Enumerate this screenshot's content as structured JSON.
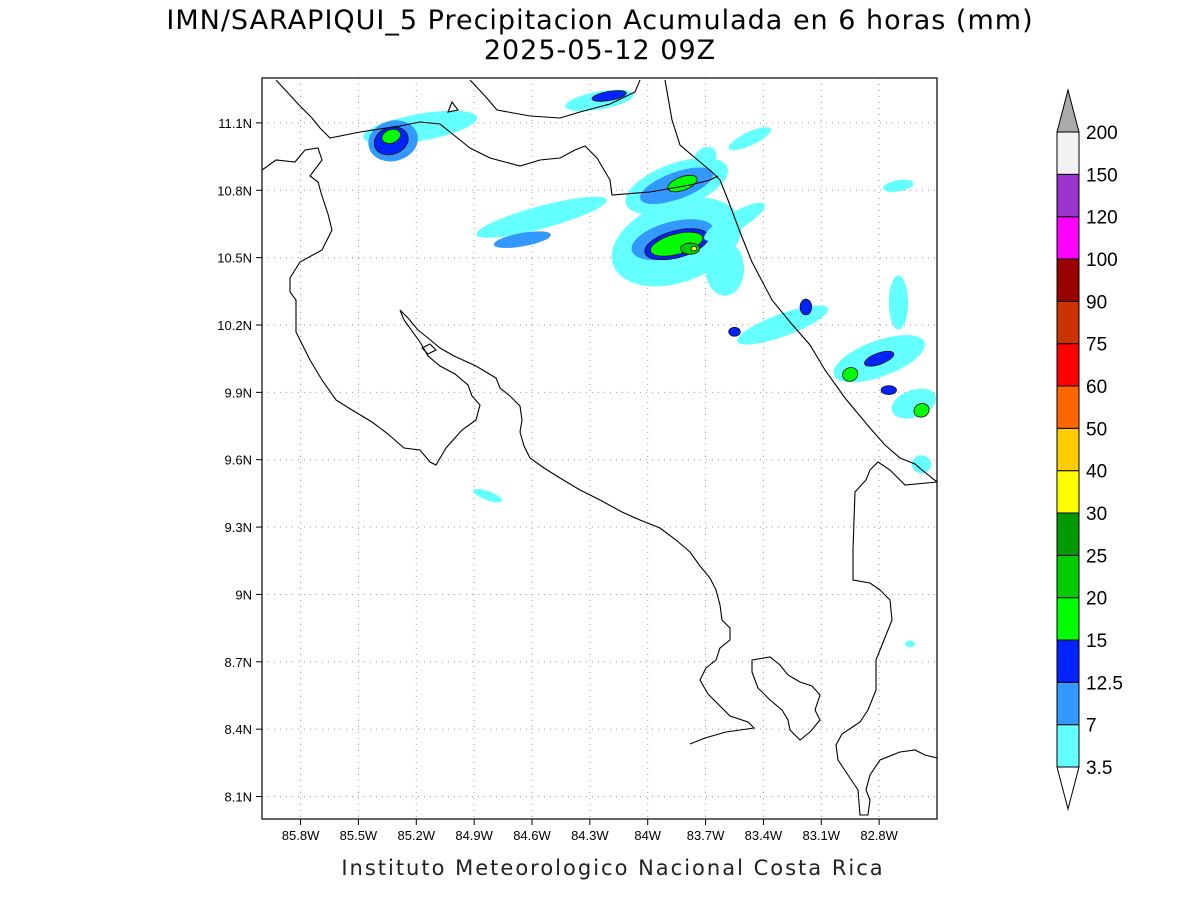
{
  "title": {
    "line1": "IMN/SARAPIQUI_5 Precipitacion Acumulada en 6 horas (mm)",
    "line2": "2025-05-12 09Z"
  },
  "footer": "Instituto Meteorologico Nacional Costa Rica",
  "map": {
    "lon_range": [
      -86.0,
      -82.5
    ],
    "lat_range": [
      8.0,
      11.3
    ],
    "lon_ticks": [
      {
        "value": -85.8,
        "label": "85.8W"
      },
      {
        "value": -85.5,
        "label": "85.5W"
      },
      {
        "value": -85.2,
        "label": "85.2W"
      },
      {
        "value": -84.9,
        "label": "84.9W"
      },
      {
        "value": -84.6,
        "label": "84.6W"
      },
      {
        "value": -84.3,
        "label": "84.3W"
      },
      {
        "value": -84.0,
        "label": "84W"
      },
      {
        "value": -83.7,
        "label": "83.7W"
      },
      {
        "value": -83.4,
        "label": "83.4W"
      },
      {
        "value": -83.1,
        "label": "83.1W"
      },
      {
        "value": -82.8,
        "label": "82.8W"
      }
    ],
    "lat_ticks": [
      {
        "value": 11.1,
        "label": "11.1N"
      },
      {
        "value": 10.8,
        "label": "10.8N"
      },
      {
        "value": 10.5,
        "label": "10.5N"
      },
      {
        "value": 10.2,
        "label": "10.2N"
      },
      {
        "value": 9.9,
        "label": "9.9N"
      },
      {
        "value": 9.6,
        "label": "9.6N"
      },
      {
        "value": 9.3,
        "label": "9.3N"
      },
      {
        "value": 9.0,
        "label": "9N"
      },
      {
        "value": 8.7,
        "label": "8.7N"
      },
      {
        "value": 8.4,
        "label": "8.4N"
      },
      {
        "value": 8.1,
        "label": "8.1N"
      }
    ],
    "grid": "dotted"
  },
  "colorbar": {
    "levels": [
      "3.5",
      "7",
      "12.5",
      "15",
      "20",
      "25",
      "30",
      "40",
      "50",
      "60",
      "75",
      "90",
      "100",
      "120",
      "150",
      "200"
    ],
    "colors": [
      "#64ffff",
      "#3399ff",
      "#0022ff",
      "#00ff00",
      "#00cc00",
      "#009900",
      "#ffff00",
      "#ffcc00",
      "#ff6600",
      "#ff0000",
      "#cc3300",
      "#990000",
      "#ff00ff",
      "#9933cc",
      "#f2f2f2"
    ],
    "overflow_color": "#aaaaaa",
    "underflow_color": "#ffffff"
  },
  "precip_cells": [
    {
      "lon": -85.18,
      "lat": 11.08,
      "value": 4,
      "rx": 0.3,
      "ry": 0.06,
      "rot": -10
    },
    {
      "lon": -85.32,
      "lat": 11.02,
      "value": 8,
      "rx": 0.13,
      "ry": 0.09,
      "rot": -15
    },
    {
      "lon": -85.33,
      "lat": 11.02,
      "value": 13,
      "rx": 0.09,
      "ry": 0.06,
      "rot": -20
    },
    {
      "lon": -85.33,
      "lat": 11.04,
      "value": 17,
      "rx": 0.05,
      "ry": 0.03,
      "rot": -20
    },
    {
      "lon": -84.25,
      "lat": 11.2,
      "value": 5,
      "rx": 0.18,
      "ry": 0.04,
      "rot": -10
    },
    {
      "lon": -84.2,
      "lat": 11.22,
      "value": 13,
      "rx": 0.09,
      "ry": 0.02,
      "rot": -10
    },
    {
      "lon": -84.55,
      "lat": 10.68,
      "value": 4,
      "rx": 0.35,
      "ry": 0.05,
      "rot": -15
    },
    {
      "lon": -84.65,
      "lat": 10.58,
      "value": 8,
      "rx": 0.15,
      "ry": 0.03,
      "rot": -10
    },
    {
      "lon": -83.85,
      "lat": 10.82,
      "value": 5,
      "rx": 0.28,
      "ry": 0.1,
      "rot": -20
    },
    {
      "lon": -83.85,
      "lat": 10.82,
      "value": 9,
      "rx": 0.2,
      "ry": 0.06,
      "rot": -20
    },
    {
      "lon": -83.82,
      "lat": 10.83,
      "value": 17,
      "rx": 0.08,
      "ry": 0.03,
      "rot": -20
    },
    {
      "lon": -83.85,
      "lat": 10.57,
      "value": 4,
      "rx": 0.35,
      "ry": 0.18,
      "rot": -20
    },
    {
      "lon": -83.87,
      "lat": 10.58,
      "value": 9,
      "rx": 0.22,
      "ry": 0.08,
      "rot": -15
    },
    {
      "lon": -83.85,
      "lat": 10.56,
      "value": 13,
      "rx": 0.17,
      "ry": 0.06,
      "rot": -15
    },
    {
      "lon": -83.85,
      "lat": 10.56,
      "value": 17,
      "rx": 0.14,
      "ry": 0.045,
      "rot": -15
    },
    {
      "lon": -83.78,
      "lat": 10.54,
      "value": 22,
      "rx": 0.05,
      "ry": 0.025,
      "rot": 0
    },
    {
      "lon": -83.76,
      "lat": 10.54,
      "value": 35,
      "rx": 0.015,
      "ry": 0.01,
      "rot": 0
    },
    {
      "lon": -83.6,
      "lat": 10.45,
      "value": 6,
      "rx": 0.1,
      "ry": 0.12,
      "rot": 0
    },
    {
      "lon": -83.55,
      "lat": 10.66,
      "value": 4,
      "rx": 0.18,
      "ry": 0.04,
      "rot": -30
    },
    {
      "lon": -83.3,
      "lat": 10.2,
      "value": 5,
      "rx": 0.25,
      "ry": 0.05,
      "rot": -20
    },
    {
      "lon": -83.18,
      "lat": 10.28,
      "value": 13,
      "rx": 0.03,
      "ry": 0.035,
      "rot": 0
    },
    {
      "lon": -83.55,
      "lat": 10.17,
      "value": 13,
      "rx": 0.03,
      "ry": 0.02,
      "rot": 0
    },
    {
      "lon": -83.7,
      "lat": 10.95,
      "value": 6,
      "rx": 0.06,
      "ry": 0.04,
      "rot": -30
    },
    {
      "lon": -83.47,
      "lat": 11.03,
      "value": 4,
      "rx": 0.12,
      "ry": 0.03,
      "rot": -25
    },
    {
      "lon": -82.8,
      "lat": 10.05,
      "value": 5,
      "rx": 0.25,
      "ry": 0.08,
      "rot": -20
    },
    {
      "lon": -82.8,
      "lat": 10.05,
      "value": 13,
      "rx": 0.08,
      "ry": 0.025,
      "rot": -20
    },
    {
      "lon": -82.95,
      "lat": 9.98,
      "value": 17,
      "rx": 0.04,
      "ry": 0.03,
      "rot": -20
    },
    {
      "lon": -82.75,
      "lat": 9.91,
      "value": 13,
      "rx": 0.04,
      "ry": 0.02,
      "rot": 0
    },
    {
      "lon": -82.62,
      "lat": 9.85,
      "value": 5,
      "rx": 0.12,
      "ry": 0.06,
      "rot": -20
    },
    {
      "lon": -82.58,
      "lat": 9.82,
      "value": 17,
      "rx": 0.04,
      "ry": 0.03,
      "rot": -20
    },
    {
      "lon": -82.7,
      "lat": 10.3,
      "value": 4,
      "rx": 0.05,
      "ry": 0.12,
      "rot": 0
    },
    {
      "lon": -82.7,
      "lat": 10.82,
      "value": 4,
      "rx": 0.08,
      "ry": 0.025,
      "rot": -10
    },
    {
      "lon": -82.58,
      "lat": 9.58,
      "value": 4,
      "rx": 0.05,
      "ry": 0.04,
      "rot": 0
    },
    {
      "lon": -84.83,
      "lat": 9.44,
      "value": 4,
      "rx": 0.08,
      "ry": 0.02,
      "rot": 20
    },
    {
      "lon": -82.64,
      "lat": 8.78,
      "value": 4,
      "rx": 0.025,
      "ry": 0.015,
      "rot": 0
    }
  ]
}
